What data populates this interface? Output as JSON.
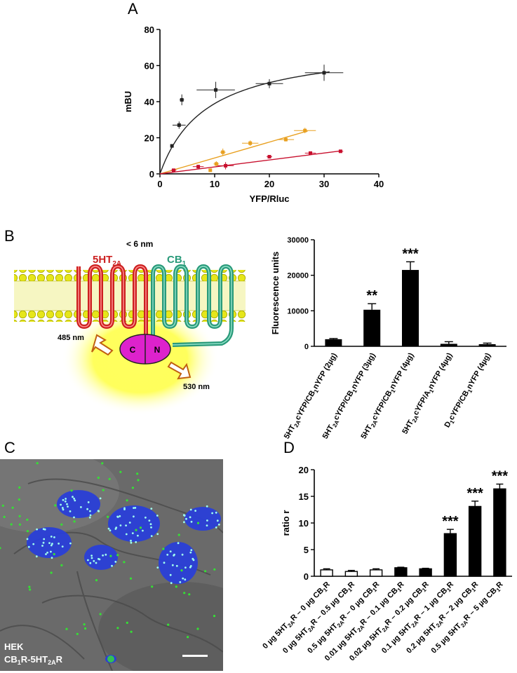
{
  "panels": {
    "A": "A",
    "B": "B",
    "C": "C",
    "D": "D"
  },
  "colors": {
    "black": "#222222",
    "orange": "#e8a020",
    "red": "#c8102e",
    "membrane": "#d8d800",
    "receptor_5ht": "#cc2020",
    "receptor_cb": "#2a9a7a",
    "venus": "#dd22cc",
    "glow": "#ffff40",
    "nuclei": "#2a3fd8",
    "pla_dots": "#35e035"
  },
  "schematic": {
    "distance": "< 6 nm",
    "receptor1_base": "5HT",
    "receptor1_sub": "2A",
    "receptor2_base": "CB",
    "receptor2_sub": "1",
    "excitation": "485 nm",
    "emission": "530 nm",
    "venus_c": "C",
    "venus_n": "N"
  },
  "micrograph": {
    "line1": "HEK",
    "line2_base": "CB",
    "line2_sub": "1",
    "line2_mid": "R-5HT",
    "line2_sub2": "2A",
    "line2_end": "R"
  },
  "chart_data": [
    {
      "type": "scatter",
      "title": "",
      "xlabel": "YFP/Rluc",
      "ylabel": "mBU",
      "xlim": [
        0,
        40
      ],
      "ylim": [
        0,
        80
      ],
      "xticks": [
        "0",
        "10",
        "20",
        "30",
        "40"
      ],
      "yticks": [
        "0",
        "20",
        "40",
        "60",
        "80"
      ],
      "series": [
        {
          "color": "#222222",
          "fit": "saturation",
          "bmax": 72,
          "kd": 8.5,
          "points": [
            {
              "x": 2.2,
              "y": 15.5,
              "xerr": 0.3,
              "yerr": 0.5
            },
            {
              "x": 3.5,
              "y": 27.0,
              "xerr": 1.2,
              "yerr": 2.0
            },
            {
              "x": 4.0,
              "y": 41.0,
              "xerr": 0.4,
              "yerr": 3.0
            },
            {
              "x": 10.2,
              "y": 46.5,
              "xerr": 3.5,
              "yerr": 4.5
            },
            {
              "x": 20.0,
              "y": 50.0,
              "xerr": 2.5,
              "yerr": 2.5
            },
            {
              "x": 30.0,
              "y": 56.0,
              "xerr": 3.5,
              "yerr": 4.5
            }
          ]
        },
        {
          "color": "#e8a020",
          "fit": "linear",
          "slope": 0.88,
          "xrange": [
            0,
            27
          ],
          "points": [
            {
              "x": 9.2,
              "y": 2.0,
              "xerr": 0.3,
              "yerr": 0.8
            },
            {
              "x": 10.3,
              "y": 5.5,
              "xerr": 0.5,
              "yerr": 1.5
            },
            {
              "x": 11.5,
              "y": 12.0,
              "xerr": 0.5,
              "yerr": 2.0
            },
            {
              "x": 16.5,
              "y": 17.0,
              "xerr": 1.5,
              "yerr": 1.5
            },
            {
              "x": 23.0,
              "y": 19.0,
              "xerr": 1.5,
              "yerr": 1.0
            },
            {
              "x": 26.5,
              "y": 24.0,
              "xerr": 2.0,
              "yerr": 1.5
            }
          ]
        },
        {
          "color": "#c8102e",
          "fit": "linear",
          "slope": 0.385,
          "xrange": [
            0,
            33
          ],
          "points": [
            {
              "x": 2.5,
              "y": 2.0,
              "xerr": 0.5,
              "yerr": 0.5
            },
            {
              "x": 7.0,
              "y": 4.0,
              "xerr": 1.0,
              "yerr": 1.0
            },
            {
              "x": 12.0,
              "y": 4.5,
              "xerr": 1.5,
              "yerr": 2.0
            },
            {
              "x": 20.0,
              "y": 9.5,
              "xerr": 0.5,
              "yerr": 1.0
            },
            {
              "x": 27.5,
              "y": 11.5,
              "xerr": 1.0,
              "yerr": 0.5
            },
            {
              "x": 33.0,
              "y": 12.5,
              "xerr": 0.5,
              "yerr": 0.5
            }
          ]
        }
      ]
    },
    {
      "type": "bar",
      "title": "",
      "ylabel": "Fluorescence units",
      "ylim": [
        0,
        30000
      ],
      "yticks": [
        "0",
        "10000",
        "20000",
        "30000"
      ],
      "categories": [
        {
          "pre": "5HT",
          "sub1": "2A",
          "mid": "cYFP/CB",
          "sub2": "1",
          "post": "nYFP (2µg)"
        },
        {
          "pre": "5HT",
          "sub1": "2A",
          "mid": "cYFP/CB",
          "sub2": "1",
          "post": "nYFP (3µg)"
        },
        {
          "pre": "5HT",
          "sub1": "2A",
          "mid": "cYFP/CB",
          "sub2": "1",
          "post": "nYFP (4µg)"
        },
        {
          "pre": "5HT",
          "sub1": "2A",
          "mid": "cYFP/A",
          "sub2": "1",
          "post": "nYFP (4µg)"
        },
        {
          "pre": "D",
          "sub1": "1",
          "mid": "cYFP/CB",
          "sub2": "1",
          "post": "nYFP (4µg)"
        }
      ],
      "values": [
        2000,
        10300,
        21500,
        700,
        600
      ],
      "errors": [
        200,
        1700,
        2300,
        600,
        300
      ],
      "annotations": [
        "",
        "**",
        "***",
        "",
        ""
      ]
    },
    {
      "type": "bar",
      "title": "",
      "ylabel": "ratio r",
      "ylim": [
        0,
        20
      ],
      "yticks": [
        "0",
        "5",
        "10",
        "15",
        "20"
      ],
      "categories": [
        {
          "a": "0 µg 5HT",
          "s1": "2A",
          "b": "R – 0 µg CB",
          "s2": "1",
          "c": "R"
        },
        {
          "a": "0 µg 5HT",
          "s1": "2A",
          "b": "R – 0.5 µg CB",
          "s2": "1",
          "c": "R"
        },
        {
          "a": "0.5 µg 5HT",
          "s1": "2A",
          "b": "R – 0 µg CB",
          "s2": "1",
          "c": "R"
        },
        {
          "a": "0.01 µg 5HT",
          "s1": "2A",
          "b": "R – 0.1 µg CB",
          "s2": "1",
          "c": "R"
        },
        {
          "a": "0.02 µg 5HT",
          "s1": "2A",
          "b": "R – 0.2 µg CB",
          "s2": "1",
          "c": "R"
        },
        {
          "a": "0.1 µg 5HT",
          "s1": "2A",
          "b": "R – 1 µg CB",
          "s2": "1",
          "c": "R"
        },
        {
          "a": "0.2 µg 5HT",
          "s1": "2A",
          "b": "R – 2 µg CB",
          "s2": "1",
          "c": "R"
        },
        {
          "a": "0.5 µg 5HT",
          "s1": "2A",
          "b": "R – 5 µg CB",
          "s2": "1",
          "c": "R"
        }
      ],
      "values": [
        1.2,
        0.9,
        1.2,
        1.6,
        1.4,
        8.0,
        13.1,
        16.4
      ],
      "errors": [
        0.2,
        0.2,
        0.2,
        0.1,
        0.1,
        0.8,
        1.0,
        0.9
      ],
      "filled": [
        false,
        false,
        false,
        true,
        true,
        true,
        true,
        true
      ],
      "annotations": [
        "",
        "",
        "",
        "",
        "",
        "***",
        "***",
        "***"
      ]
    }
  ]
}
